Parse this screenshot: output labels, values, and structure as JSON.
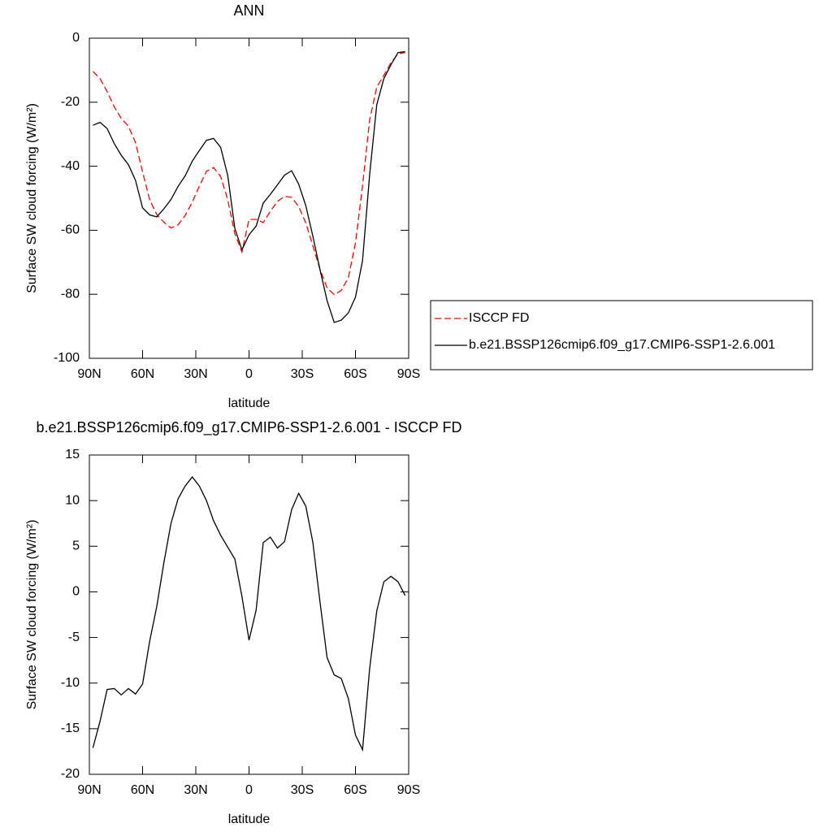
{
  "chart_data": [
    {
      "type": "line",
      "title": "ANN",
      "xlabel": "latitude",
      "ylabel": "Surface SW cloud forcing (W/m²)",
      "x": [
        88,
        84,
        80,
        76,
        72,
        68,
        64,
        60,
        56,
        52,
        48,
        44,
        40,
        36,
        32,
        28,
        24,
        20,
        16,
        12,
        8,
        4,
        0,
        -4,
        -8,
        -12,
        -16,
        -20,
        -24,
        -28,
        -32,
        -36,
        -40,
        -44,
        -48,
        -52,
        -56,
        -60,
        -64,
        -68,
        -72,
        -76,
        -80,
        -84,
        -88
      ],
      "xlim": [
        90,
        -90
      ],
      "xticks": [
        {
          "value": 90,
          "label": "90N"
        },
        {
          "value": 60,
          "label": "60N"
        },
        {
          "value": 30,
          "label": "30N"
        },
        0,
        {
          "value": -30,
          "label": "30S"
        },
        {
          "value": -60,
          "label": "60S"
        },
        {
          "value": -90,
          "label": "90S"
        }
      ],
      "ylim": [
        -100,
        0
      ],
      "yticks": [
        0,
        -20,
        -40,
        -60,
        -80,
        -100
      ],
      "legend": "right",
      "series": [
        {
          "name": "ISCCP FD",
          "color": "#ff0000",
          "line_style": "dashed",
          "values": [
            -10.4,
            -12.6,
            -16.7,
            -21.4,
            -25.1,
            -27.5,
            -32.6,
            -41.8,
            -50.5,
            -55.1,
            -57.5,
            -59.3,
            -58.3,
            -55.4,
            -51.2,
            -46.2,
            -41.6,
            -40.4,
            -43.2,
            -50.5,
            -61.1,
            -66.8,
            -56.6,
            -56.6,
            -57.6,
            -54.1,
            -51,
            -49.4,
            -49.7,
            -52.6,
            -57.7,
            -64.9,
            -72.2,
            -78,
            -80.1,
            -78.8,
            -74.8,
            -64,
            -46,
            -25.5,
            -15.3,
            -11.6,
            -7.7,
            -4.9,
            -4.5
          ]
        },
        {
          "name": "b.e21.BSSP126cmip6.f09_g17.CMIP6-SSP1-2.6.001",
          "color": "#000000",
          "line_style": "solid",
          "values": [
            -27.2,
            -26.3,
            -28.2,
            -32.9,
            -36.6,
            -39.5,
            -44.4,
            -53,
            -55.2,
            -55.8,
            -53.3,
            -50.4,
            -46.3,
            -43,
            -38.4,
            -35.1,
            -31.9,
            -31.3,
            -34.1,
            -42.9,
            -59.4,
            -66.1,
            -61.4,
            -58.7,
            -51.5,
            -48.8,
            -45.8,
            -42.8,
            -41.4,
            -45.6,
            -52.3,
            -61.9,
            -72.3,
            -82,
            -88.8,
            -88.1,
            -85.8,
            -80.9,
            -69.4,
            -42.6,
            -20.8,
            -12.6,
            -8.3,
            -4.5,
            -4.2
          ]
        }
      ]
    },
    {
      "type": "line",
      "title": "b.e21.BSSP126cmip6.f09_g17.CMIP6-SSP1-2.6.001 - ISCCP FD",
      "xlabel": "latitude",
      "ylabel": "Surface SW cloud forcing (W/m²)",
      "x": [
        88,
        84,
        80,
        76,
        72,
        68,
        64,
        60,
        56,
        52,
        48,
        44,
        40,
        36,
        32,
        28,
        24,
        20,
        16,
        12,
        8,
        4,
        0,
        -4,
        -8,
        -12,
        -16,
        -20,
        -24,
        -28,
        -32,
        -36,
        -40,
        -44,
        -48,
        -52,
        -56,
        -60,
        -64,
        -68,
        -72,
        -76,
        -80,
        -84,
        -88
      ],
      "xlim": [
        90,
        -90
      ],
      "xticks": [
        {
          "value": 90,
          "label": "90N"
        },
        {
          "value": 60,
          "label": "60N"
        },
        {
          "value": 30,
          "label": "30N"
        },
        0,
        {
          "value": -30,
          "label": "30S"
        },
        {
          "value": -60,
          "label": "60S"
        },
        {
          "value": -90,
          "label": "90S"
        }
      ],
      "ylim": [
        -20,
        15
      ],
      "yticks": [
        15,
        10,
        5,
        0,
        -5,
        -10,
        -15,
        -20
      ],
      "series": [
        {
          "color": "#000000",
          "line_style": "solid",
          "values": [
            -17.1,
            -14.2,
            -10.7,
            -10.6,
            -11.3,
            -10.6,
            -11.2,
            -10.1,
            -5.4,
            -1.6,
            3.2,
            7.5,
            10.2,
            11.6,
            12.6,
            11.6,
            10,
            7.8,
            6.2,
            4.9,
            3.6,
            -0.5,
            -5.3,
            -2,
            5.4,
            6,
            4.8,
            5.5,
            9,
            10.8,
            9.4,
            5.4,
            -1.1,
            -7.2,
            -9.1,
            -9.5,
            -11.7,
            -15.7,
            -17.3,
            -8.4,
            -2.1,
            1.1,
            1.7,
            1.1,
            -0.4
          ]
        }
      ]
    }
  ]
}
